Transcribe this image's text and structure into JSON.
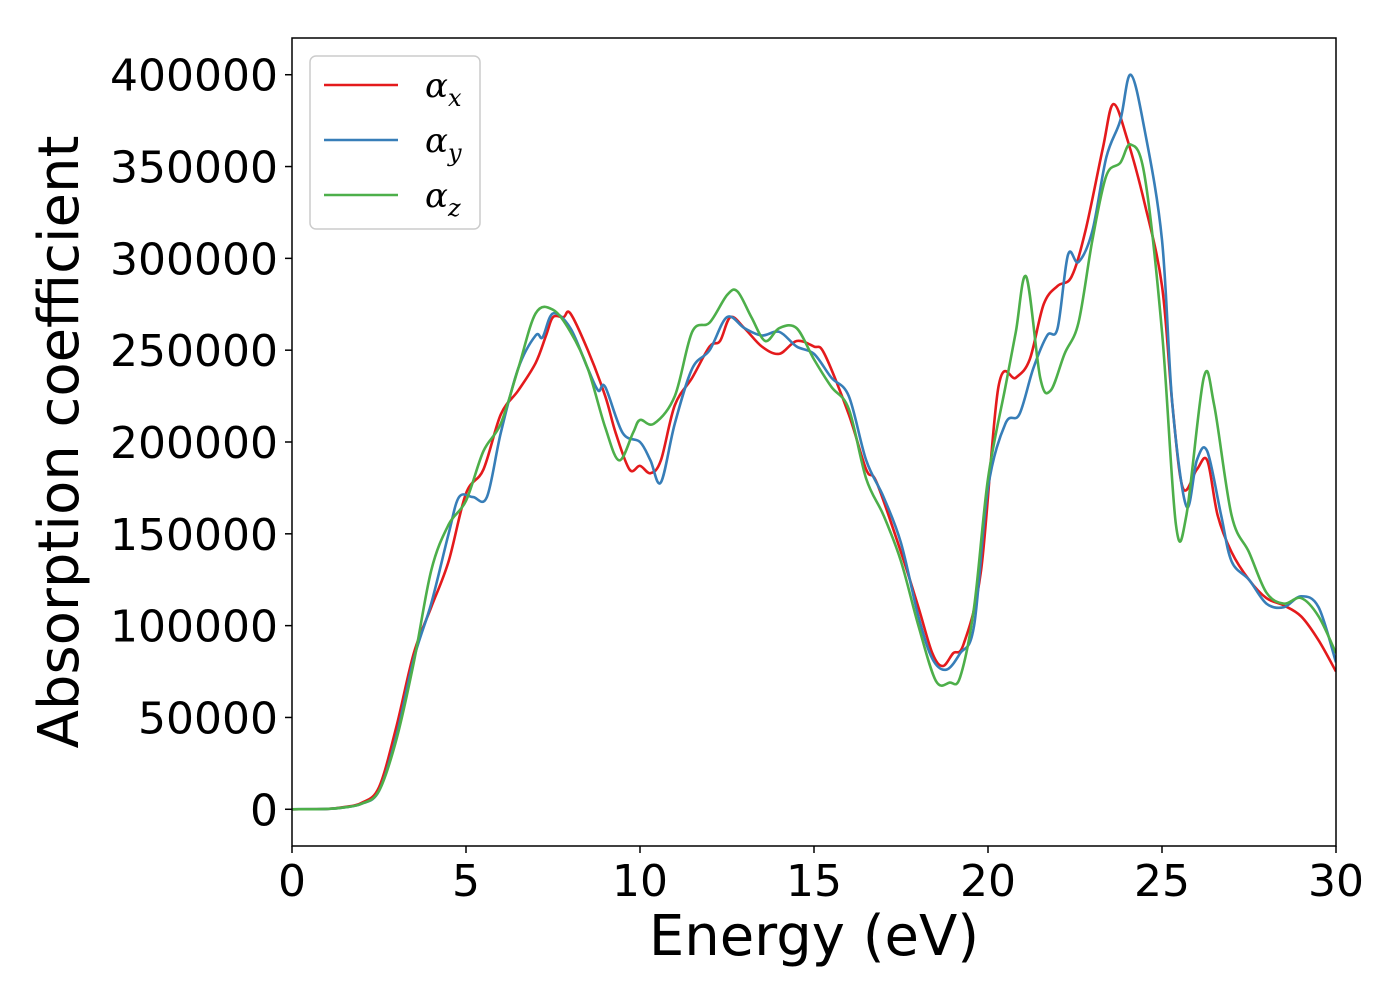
{
  "chart_data": {
    "type": "line",
    "title": "",
    "xlabel": "Energy (eV)",
    "ylabel": "Absorption coefficient",
    "xlim": [
      0,
      30
    ],
    "ylim": [
      -20000,
      420000
    ],
    "xticks": [
      0,
      5,
      10,
      15,
      20,
      25,
      30
    ],
    "yticks": [
      0,
      50000,
      100000,
      150000,
      200000,
      250000,
      300000,
      350000,
      400000
    ],
    "xtick_labels": [
      "0",
      "5",
      "10",
      "15",
      "20",
      "25",
      "30"
    ],
    "ytick_labels": [
      "0",
      "50000",
      "100000",
      "150000",
      "200000",
      "250000",
      "300000",
      "350000",
      "400000"
    ],
    "grid": false,
    "legend": {
      "position": "top-left",
      "entries": [
        {
          "symbol": "α",
          "subscript": "x"
        },
        {
          "symbol": "α",
          "subscript": "y"
        },
        {
          "symbol": "α",
          "subscript": "z"
        }
      ]
    },
    "series": [
      {
        "name": "αx",
        "color": "#e41a1c",
        "points": [
          [
            0,
            0
          ],
          [
            1,
            200
          ],
          [
            1.5,
            1200
          ],
          [
            2,
            3500
          ],
          [
            2.5,
            12000
          ],
          [
            3,
            45000
          ],
          [
            3.5,
            85000
          ],
          [
            4,
            110000
          ],
          [
            4.5,
            135000
          ],
          [
            5,
            172000
          ],
          [
            5.5,
            185000
          ],
          [
            6,
            215000
          ],
          [
            6.5,
            228000
          ],
          [
            7,
            243000
          ],
          [
            7.3,
            258000
          ],
          [
            7.5,
            268000
          ],
          [
            7.8,
            268000
          ],
          [
            8,
            270000
          ],
          [
            8.5,
            250000
          ],
          [
            9,
            225000
          ],
          [
            9.3,
            205000
          ],
          [
            9.7,
            185000
          ],
          [
            10,
            187000
          ],
          [
            10.3,
            183000
          ],
          [
            10.6,
            190000
          ],
          [
            11,
            220000
          ],
          [
            11.5,
            235000
          ],
          [
            12,
            252000
          ],
          [
            12.3,
            255000
          ],
          [
            12.6,
            268000
          ],
          [
            13,
            262000
          ],
          [
            13.5,
            252000
          ],
          [
            14,
            248000
          ],
          [
            14.5,
            255000
          ],
          [
            15,
            252000
          ],
          [
            15.3,
            248000
          ],
          [
            16,
            215000
          ],
          [
            16.5,
            185000
          ],
          [
            16.8,
            178000
          ],
          [
            17.5,
            140000
          ],
          [
            18,
            110000
          ],
          [
            18.4,
            85000
          ],
          [
            18.7,
            78000
          ],
          [
            19,
            85000
          ],
          [
            19.3,
            90000
          ],
          [
            19.8,
            130000
          ],
          [
            20.3,
            230000
          ],
          [
            20.8,
            235000
          ],
          [
            21.2,
            245000
          ],
          [
            21.6,
            275000
          ],
          [
            22,
            285000
          ],
          [
            22.4,
            290000
          ],
          [
            22.8,
            315000
          ],
          [
            23.3,
            360000
          ],
          [
            23.6,
            384000
          ],
          [
            24,
            365000
          ],
          [
            24.5,
            330000
          ],
          [
            25,
            285000
          ],
          [
            25.3,
            220000
          ],
          [
            25.6,
            175000
          ],
          [
            26,
            185000
          ],
          [
            26.3,
            190000
          ],
          [
            26.6,
            160000
          ],
          [
            27,
            140000
          ],
          [
            27.5,
            125000
          ],
          [
            28,
            115000
          ],
          [
            28.5,
            111000
          ],
          [
            29,
            105000
          ],
          [
            29.5,
            92000
          ],
          [
            30,
            75000
          ]
        ]
      },
      {
        "name": "αy",
        "color": "#377eb8",
        "points": [
          [
            0,
            0
          ],
          [
            1,
            200
          ],
          [
            1.5,
            1000
          ],
          [
            2,
            3000
          ],
          [
            2.5,
            10000
          ],
          [
            3,
            40000
          ],
          [
            3.5,
            82000
          ],
          [
            4,
            112000
          ],
          [
            4.5,
            150000
          ],
          [
            4.8,
            170000
          ],
          [
            5.2,
            170000
          ],
          [
            5.6,
            170000
          ],
          [
            6,
            205000
          ],
          [
            6.5,
            240000
          ],
          [
            7,
            258000
          ],
          [
            7.2,
            257000
          ],
          [
            7.5,
            270000
          ],
          [
            8,
            262000
          ],
          [
            8.5,
            240000
          ],
          [
            8.8,
            228000
          ],
          [
            9,
            230000
          ],
          [
            9.5,
            205000
          ],
          [
            10,
            200000
          ],
          [
            10.3,
            190000
          ],
          [
            10.6,
            178000
          ],
          [
            11,
            210000
          ],
          [
            11.5,
            240000
          ],
          [
            12,
            250000
          ],
          [
            12.5,
            268000
          ],
          [
            13,
            262000
          ],
          [
            13.5,
            258000
          ],
          [
            14,
            260000
          ],
          [
            14.5,
            252000
          ],
          [
            15,
            248000
          ],
          [
            15.5,
            235000
          ],
          [
            16,
            225000
          ],
          [
            16.5,
            190000
          ],
          [
            17,
            170000
          ],
          [
            17.5,
            145000
          ],
          [
            18,
            105000
          ],
          [
            18.4,
            82000
          ],
          [
            18.8,
            76000
          ],
          [
            19.2,
            85000
          ],
          [
            19.6,
            100000
          ],
          [
            20,
            175000
          ],
          [
            20.5,
            210000
          ],
          [
            20.9,
            215000
          ],
          [
            21.3,
            240000
          ],
          [
            21.7,
            258000
          ],
          [
            22,
            262000
          ],
          [
            22.3,
            302000
          ],
          [
            22.6,
            298000
          ],
          [
            23,
            315000
          ],
          [
            23.4,
            355000
          ],
          [
            23.8,
            375000
          ],
          [
            24.1,
            400000
          ],
          [
            24.5,
            370000
          ],
          [
            25,
            310000
          ],
          [
            25.3,
            220000
          ],
          [
            25.7,
            165000
          ],
          [
            26,
            190000
          ],
          [
            26.3,
            195000
          ],
          [
            26.7,
            160000
          ],
          [
            27,
            135000
          ],
          [
            27.5,
            125000
          ],
          [
            28,
            112000
          ],
          [
            28.5,
            110000
          ],
          [
            29,
            116000
          ],
          [
            29.5,
            110000
          ],
          [
            30,
            80000
          ]
        ]
      },
      {
        "name": "αz",
        "color": "#4daf4a",
        "points": [
          [
            0,
            0
          ],
          [
            1,
            200
          ],
          [
            1.5,
            1000
          ],
          [
            2,
            3000
          ],
          [
            2.5,
            10000
          ],
          [
            3,
            38000
          ],
          [
            3.5,
            80000
          ],
          [
            4,
            130000
          ],
          [
            4.5,
            155000
          ],
          [
            5,
            168000
          ],
          [
            5.5,
            195000
          ],
          [
            6,
            210000
          ],
          [
            6.5,
            240000
          ],
          [
            7,
            270000
          ],
          [
            7.5,
            272000
          ],
          [
            8,
            260000
          ],
          [
            8.5,
            240000
          ],
          [
            9,
            208000
          ],
          [
            9.4,
            190000
          ],
          [
            9.8,
            205000
          ],
          [
            10,
            212000
          ],
          [
            10.4,
            210000
          ],
          [
            11,
            225000
          ],
          [
            11.5,
            260000
          ],
          [
            12,
            265000
          ],
          [
            12.5,
            280000
          ],
          [
            12.8,
            282000
          ],
          [
            13.2,
            268000
          ],
          [
            13.6,
            255000
          ],
          [
            14,
            262000
          ],
          [
            14.5,
            262000
          ],
          [
            15,
            245000
          ],
          [
            15.5,
            230000
          ],
          [
            16,
            218000
          ],
          [
            16.5,
            180000
          ],
          [
            17,
            160000
          ],
          [
            17.5,
            135000
          ],
          [
            18,
            100000
          ],
          [
            18.5,
            70000
          ],
          [
            18.9,
            69000
          ],
          [
            19.2,
            72000
          ],
          [
            19.6,
            110000
          ],
          [
            20,
            180000
          ],
          [
            20.5,
            230000
          ],
          [
            20.8,
            260000
          ],
          [
            21.1,
            290000
          ],
          [
            21.5,
            235000
          ],
          [
            21.8,
            228000
          ],
          [
            22.2,
            248000
          ],
          [
            22.6,
            265000
          ],
          [
            23,
            310000
          ],
          [
            23.4,
            345000
          ],
          [
            23.8,
            352000
          ],
          [
            24.1,
            362000
          ],
          [
            24.5,
            345000
          ],
          [
            25,
            260000
          ],
          [
            25.4,
            155000
          ],
          [
            25.7,
            160000
          ],
          [
            26.2,
            235000
          ],
          [
            26.5,
            220000
          ],
          [
            27,
            160000
          ],
          [
            27.5,
            140000
          ],
          [
            28,
            118000
          ],
          [
            28.5,
            112000
          ],
          [
            29,
            115000
          ],
          [
            29.5,
            105000
          ],
          [
            30,
            85000
          ]
        ]
      }
    ]
  }
}
